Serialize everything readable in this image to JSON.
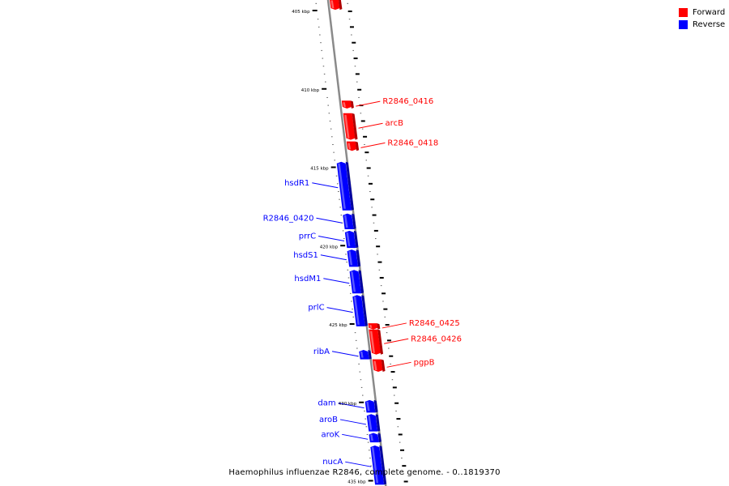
{
  "legend": {
    "items": [
      {
        "label": "Forward",
        "color": "#ff0000"
      },
      {
        "label": "Reverse",
        "color": "#0000ff"
      }
    ]
  },
  "caption": "Haemophilus influenzae R2846, complete genome. - 0..1819370",
  "ticks": [
    {
      "label": "405 kbp",
      "kbp": 405
    },
    {
      "label": "410 kbp",
      "kbp": 410
    },
    {
      "label": "415 kbp",
      "kbp": 415
    },
    {
      "label": "420 kbp",
      "kbp": 420
    },
    {
      "label": "425 kbp",
      "kbp": 425
    },
    {
      "label": "430 kbp",
      "kbp": 430
    },
    {
      "label": "435 kbp",
      "kbp": 435
    }
  ],
  "forward_genes": [
    {
      "name": "",
      "start_kbp": 404.2,
      "end_kbp": 404.9
    },
    {
      "name": "R2846_0416",
      "start_kbp": 410.7,
      "end_kbp": 411.2
    },
    {
      "name": "arcB",
      "start_kbp": 411.5,
      "end_kbp": 413.2
    },
    {
      "name": "R2846_0418",
      "start_kbp": 413.3,
      "end_kbp": 413.9
    },
    {
      "name": "R2846_0425",
      "start_kbp": 424.9,
      "end_kbp": 425.3
    },
    {
      "name": "R2846_0426",
      "start_kbp": 425.3,
      "end_kbp": 426.9
    },
    {
      "name": "pgpB",
      "start_kbp": 427.2,
      "end_kbp": 428.0
    }
  ],
  "reverse_genes": [
    {
      "name": "hsdR1",
      "start_kbp": 414.6,
      "end_kbp": 417.7
    },
    {
      "name": "R2846_0420",
      "start_kbp": 417.9,
      "end_kbp": 418.9
    },
    {
      "name": "prrC",
      "start_kbp": 419.0,
      "end_kbp": 420.1
    },
    {
      "name": "hsdS1",
      "start_kbp": 420.2,
      "end_kbp": 421.3
    },
    {
      "name": "hsdM1",
      "start_kbp": 421.5,
      "end_kbp": 423.0
    },
    {
      "name": "prlC",
      "start_kbp": 423.1,
      "end_kbp": 425.1
    },
    {
      "name": "ribA",
      "start_kbp": 426.6,
      "end_kbp": 427.2
    },
    {
      "name": "dam",
      "start_kbp": 429.8,
      "end_kbp": 430.6
    },
    {
      "name": "aroB",
      "start_kbp": 430.7,
      "end_kbp": 431.8
    },
    {
      "name": "aroK",
      "start_kbp": 431.9,
      "end_kbp": 432.5
    },
    {
      "name": "nucA",
      "start_kbp": 432.7,
      "end_kbp": 435.2
    }
  ]
}
